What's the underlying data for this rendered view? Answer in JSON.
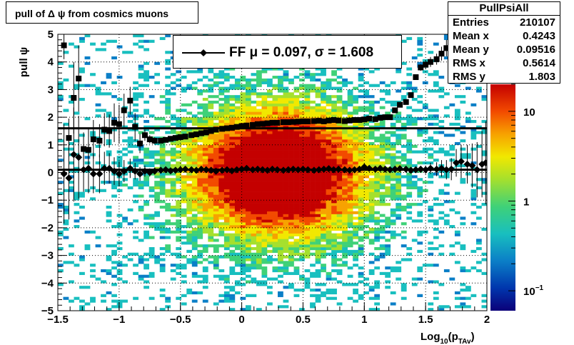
{
  "title": "pull of Δ ψ from cosmics muons",
  "stats": {
    "name": "PullPsiAll",
    "rows": [
      {
        "label": "Entries",
        "value": "210107"
      },
      {
        "label": "Mean x",
        "value": "0.4243"
      },
      {
        "label": "Mean y",
        "value": "0.09516"
      },
      {
        "label": "RMS x",
        "value": "0.5614"
      },
      {
        "label": "RMS y",
        "value": "1.803"
      }
    ]
  },
  "legend": {
    "text": "FF μ =  0.097, σ =   1.608"
  },
  "colors": {
    "marker": "#000000",
    "palette": [
      "#0b0079",
      "#0036ad",
      "#0b7fc7",
      "#18bfbf",
      "#3fd178",
      "#a5e02d",
      "#f1e800",
      "#f7a200",
      "#f24a00",
      "#c40000"
    ]
  },
  "chart_data": {
    "type": "heatmap",
    "title": "pull of Δ ψ from cosmics muons",
    "xlabel": "Log10(pTAv)",
    "xlabel_parts": {
      "base": "Log",
      "sub1": "10",
      "mid": "(p",
      "sub2": "TAv",
      "end": ")"
    },
    "ylabel": "pull ψ",
    "xlim": [
      -1.5,
      2
    ],
    "ylim": [
      -5,
      5
    ],
    "z_scale": "log",
    "x_ticks": [
      "−1.5",
      "−1",
      "−0.5",
      "0",
      "0.5",
      "1",
      "1.5",
      "2"
    ],
    "x_tick_values": [
      -1.5,
      -1,
      -0.5,
      0,
      0.5,
      1,
      1.5,
      2
    ],
    "y_ticks": [
      "5",
      "4",
      "3",
      "2",
      "1",
      "0",
      "−1",
      "−2",
      "−3",
      "−4",
      "−5"
    ],
    "y_tick_values": [
      5,
      4,
      3,
      2,
      1,
      0,
      -1,
      -2,
      -3,
      -4,
      -5
    ],
    "z_ticks": [
      "10",
      "1",
      "10−1"
    ],
    "z_tick_values": [
      10,
      1,
      0.1
    ],
    "grid": true,
    "reference_lines": [
      1.6,
      0.1
    ],
    "series": [
      {
        "marker": "square",
        "x": [
          -1.45,
          -1.41,
          -1.37,
          -1.33,
          -1.29,
          -1.25,
          -1.21,
          -1.16,
          -1.12,
          -1.08,
          -1.04,
          -1.0,
          -0.96,
          -0.91,
          -0.87,
          -0.83,
          -0.79,
          -0.75,
          -0.71,
          -0.66,
          -0.62,
          -0.58,
          -0.54,
          -0.5,
          -0.46,
          -0.41,
          -0.37,
          -0.33,
          -0.29,
          -0.25,
          -0.21,
          -0.16,
          -0.12,
          -0.08,
          -0.04,
          0.0,
          0.04,
          0.09,
          0.13,
          0.17,
          0.21,
          0.25,
          0.29,
          0.34,
          0.38,
          0.42,
          0.46,
          0.5,
          0.54,
          0.59,
          0.63,
          0.67,
          0.71,
          0.75,
          0.79,
          0.84,
          0.88,
          0.92,
          0.96,
          1.0,
          1.04,
          1.09,
          1.13,
          1.17,
          1.21,
          1.25,
          1.29,
          1.34,
          1.38,
          1.42,
          1.46,
          1.5,
          1.54,
          1.59,
          1.63,
          1.67,
          1.71,
          1.75,
          1.79,
          1.84,
          1.88,
          1.92,
          1.96
        ],
        "y": [
          4.6,
          1.25,
          2.7,
          3.4,
          0.85,
          0.82,
          1.2,
          1.15,
          1.55,
          1.5,
          1.8,
          1.75,
          2.25,
          2.6,
          1.65,
          1.05,
          1.35,
          1.2,
          1.15,
          1.15,
          1.18,
          1.22,
          1.25,
          1.28,
          1.3,
          1.35,
          1.38,
          1.42,
          1.45,
          1.5,
          1.55,
          1.58,
          1.6,
          1.62,
          1.65,
          1.68,
          1.7,
          1.72,
          1.75,
          1.76,
          1.78,
          1.8,
          1.8,
          1.82,
          1.82,
          1.83,
          1.84,
          1.85,
          1.85,
          1.86,
          1.87,
          1.85,
          1.88,
          1.9,
          1.88,
          1.86,
          1.88,
          1.9,
          1.9,
          1.92,
          1.95,
          1.93,
          1.98,
          2.0,
          2.0,
          2.25,
          2.45,
          2.55,
          2.8,
          3.45,
          3.8,
          3.9,
          4.0,
          4.1,
          4.3,
          4.5,
          4.6,
          4.7,
          4.7,
          4.8,
          4.9,
          5.0,
          5.0
        ],
        "err": [
          0.5,
          0.7,
          1.3,
          1.2,
          0.6,
          0.8,
          0.7,
          0.6,
          0.6,
          0.6,
          0.7,
          0.7,
          0.6,
          0.5,
          0.5,
          0.35,
          0.2,
          0.15,
          0.12,
          0.1,
          0.08,
          0.06,
          0.05,
          0.05,
          0.05,
          0.05,
          0.05,
          0.05,
          0.05,
          0.05,
          0.05,
          0.05,
          0.05,
          0.05,
          0.05,
          0.05,
          0.05,
          0.05,
          0.05,
          0.05,
          0.05,
          0.05,
          0.05,
          0.05,
          0.05,
          0.05,
          0.05,
          0.05,
          0.05,
          0.05,
          0.05,
          0.05,
          0.05,
          0.05,
          0.05,
          0.05,
          0.05,
          0.05,
          0.05,
          0.05,
          0.05,
          0.05,
          0.05,
          0.05,
          0.05,
          0.05,
          0.05,
          0.06,
          0.08,
          0.1,
          0.12,
          0.15,
          0.18,
          0.2,
          0.25,
          0.3,
          0.35,
          0.4,
          0.45,
          0.5,
          0.55,
          0.6,
          0.6
        ]
      },
      {
        "marker": "diamond",
        "x": [
          -1.45,
          -1.41,
          -1.37,
          -1.33,
          -1.29,
          -1.25,
          -1.21,
          -1.16,
          -1.12,
          -1.08,
          -1.04,
          -1.0,
          -0.96,
          -0.91,
          -0.87,
          -0.83,
          -0.79,
          -0.75,
          -0.71,
          -0.66,
          -0.62,
          -0.58,
          -0.54,
          -0.5,
          -0.46,
          -0.41,
          -0.37,
          -0.33,
          -0.29,
          -0.25,
          -0.21,
          -0.16,
          -0.12,
          -0.08,
          -0.04,
          0.0,
          0.04,
          0.09,
          0.13,
          0.17,
          0.21,
          0.25,
          0.29,
          0.34,
          0.38,
          0.42,
          0.46,
          0.5,
          0.54,
          0.59,
          0.63,
          0.67,
          0.71,
          0.75,
          0.79,
          0.84,
          0.88,
          0.92,
          0.96,
          1.0,
          1.04,
          1.09,
          1.13,
          1.17,
          1.21,
          1.25,
          1.29,
          1.34,
          1.38,
          1.42,
          1.46,
          1.5,
          1.54,
          1.59,
          1.63,
          1.67,
          1.71,
          1.75,
          1.79,
          1.84,
          1.88,
          1.92,
          1.96,
          1.99
        ],
        "y": [
          -0.05,
          -0.2,
          0.65,
          0.55,
          0.1,
          0.15,
          -0.05,
          -0.05,
          0.15,
          0.15,
          0.05,
          -0.05,
          0.05,
          0.15,
          0.05,
          -0.05,
          0.05,
          0.0,
          0.05,
          0.08,
          0.1,
          0.06,
          0.08,
          0.1,
          0.12,
          0.1,
          0.08,
          0.12,
          0.1,
          0.08,
          0.05,
          0.08,
          0.1,
          0.06,
          0.1,
          0.12,
          0.15,
          0.1,
          0.12,
          0.1,
          0.08,
          0.12,
          0.1,
          0.08,
          0.1,
          0.12,
          0.1,
          0.12,
          0.1,
          0.08,
          0.1,
          0.12,
          0.14,
          0.1,
          0.12,
          0.1,
          0.08,
          0.1,
          0.12,
          0.2,
          0.15,
          0.12,
          0.15,
          0.12,
          0.1,
          0.12,
          0.14,
          0.12,
          0.08,
          0.1,
          0.12,
          0.1,
          0.15,
          0.12,
          0.15,
          0.1,
          0.12,
          0.35,
          0.4,
          0.3,
          0.25,
          0.1,
          0.3,
          0.35
        ],
        "err": [
          1.8,
          1.5,
          1.7,
          1.5,
          0.8,
          0.9,
          0.7,
          0.7,
          0.6,
          0.55,
          0.5,
          0.45,
          0.4,
          0.35,
          0.3,
          0.25,
          0.2,
          0.15,
          0.12,
          0.1,
          0.08,
          0.07,
          0.06,
          0.05,
          0.05,
          0.05,
          0.05,
          0.05,
          0.05,
          0.05,
          0.05,
          0.05,
          0.05,
          0.05,
          0.05,
          0.05,
          0.05,
          0.05,
          0.05,
          0.05,
          0.05,
          0.05,
          0.05,
          0.05,
          0.05,
          0.05,
          0.05,
          0.05,
          0.05,
          0.05,
          0.05,
          0.05,
          0.05,
          0.05,
          0.05,
          0.05,
          0.05,
          0.05,
          0.05,
          0.05,
          0.05,
          0.05,
          0.05,
          0.05,
          0.05,
          0.05,
          0.05,
          0.06,
          0.08,
          0.1,
          0.12,
          0.15,
          0.2,
          0.25,
          0.3,
          0.35,
          0.4,
          0.5,
          0.6,
          0.7,
          0.8,
          1.0,
          1.2,
          1.5
        ]
      }
    ]
  }
}
